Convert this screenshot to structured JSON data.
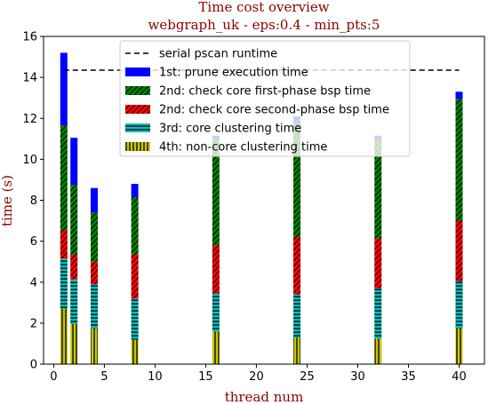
{
  "chart_data": {
    "type": "bar",
    "stacked": true,
    "title": "Time cost overview",
    "subtitle": "webgraph_uk - eps:0.4 - min_pts:5",
    "xlabel": "thread num",
    "ylabel": "time (s)",
    "xlim": [
      -1,
      42.5
    ],
    "ylim": [
      0,
      16
    ],
    "xticks": [
      0,
      5,
      10,
      15,
      20,
      25,
      30,
      35,
      40
    ],
    "yticks": [
      0,
      2,
      4,
      6,
      8,
      10,
      12,
      14,
      16
    ],
    "x": [
      1,
      2,
      4,
      8,
      16,
      24,
      32,
      40
    ],
    "serial_runtime": 14.35,
    "legend_position": "top-center",
    "series": [
      {
        "name": "4th: non-core clustering time",
        "color": "#c8c800",
        "hatch": "vertical",
        "values": [
          2.7,
          1.95,
          1.75,
          1.2,
          1.6,
          1.3,
          1.25,
          1.75
        ]
      },
      {
        "name": "3rd: core clustering time",
        "color": "#00bfbf",
        "hatch": "horizontal",
        "values": [
          2.45,
          2.2,
          2.15,
          2.0,
          1.85,
          2.1,
          2.45,
          2.3
        ]
      },
      {
        "name": "2nd: check core second-phase bsp time",
        "color": "#ff0000",
        "hatch": "diagonal",
        "values": [
          1.4,
          1.2,
          1.1,
          2.15,
          2.35,
          2.8,
          2.45,
          2.95
        ]
      },
      {
        "name": "2nd: check core first-phase bsp time",
        "color": "#008000",
        "hatch": "diagonal",
        "values": [
          5.1,
          3.4,
          2.4,
          2.8,
          5.2,
          5.6,
          4.8,
          5.95
        ]
      },
      {
        "name": "1st: prune execution time",
        "color": "#0000ff",
        "hatch": "none",
        "values": [
          3.55,
          2.3,
          1.2,
          0.65,
          0.15,
          0.3,
          0.2,
          0.35
        ]
      }
    ],
    "legend_entries": [
      {
        "label": "serial pscan runtime",
        "kind": "line"
      },
      {
        "label": "1st: prune execution time",
        "series": 4
      },
      {
        "label": "2nd: check core first-phase bsp time",
        "series": 3
      },
      {
        "label": "2nd: check core second-phase bsp time",
        "series": 2
      },
      {
        "label": "3rd: core clustering time",
        "series": 1
      },
      {
        "label": "4th: non-core clustering time",
        "series": 0
      }
    ]
  }
}
